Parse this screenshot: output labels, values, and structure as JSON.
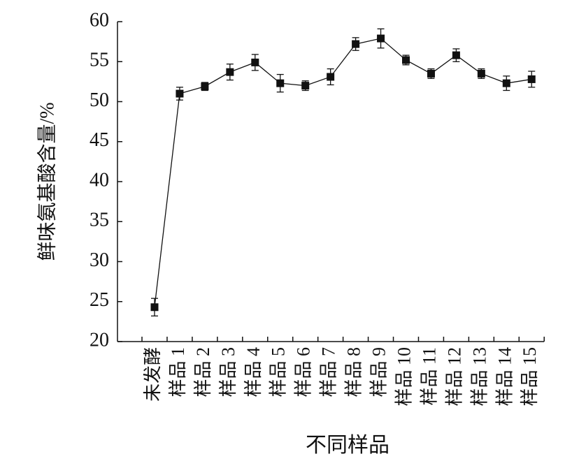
{
  "chart_data": {
    "type": "line",
    "x_label": "不同样品",
    "y_label": "鲜味氨基酸含量/%",
    "categories": [
      "未发酵",
      "样品 1",
      "样品 2",
      "样品 3",
      "样品 4",
      "样品 5",
      "样品 6",
      "样品 7",
      "样品 8",
      "样品 9",
      "样品 10",
      "样品 11",
      "样品 12",
      "样品 13",
      "样品 14",
      "样品 15"
    ],
    "series": [
      {
        "color": "#111111",
        "values": [
          24.3,
          51.0,
          51.9,
          53.7,
          54.9,
          52.3,
          52.0,
          53.1,
          57.2,
          57.9,
          55.2,
          53.5,
          55.8,
          53.5,
          52.3,
          52.8
        ],
        "errors": [
          1.1,
          0.8,
          0.5,
          1.0,
          1.0,
          1.1,
          0.6,
          1.0,
          0.8,
          1.2,
          0.6,
          0.6,
          0.8,
          0.6,
          0.9,
          1.0
        ]
      }
    ],
    "ylim": [
      20,
      60
    ],
    "yticks": [
      20,
      25,
      30,
      35,
      40,
      45,
      50,
      55,
      60
    ]
  }
}
